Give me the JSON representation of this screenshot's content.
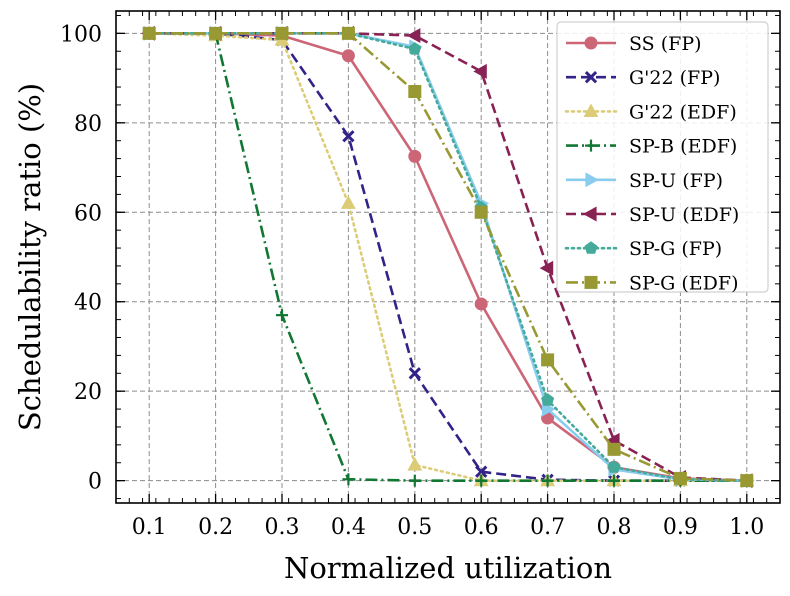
{
  "chart_data": {
    "type": "line",
    "xlabel": "Normalized utilization",
    "ylabel": "Schedulability ratio (%)",
    "xlim": [
      0.05,
      1.05
    ],
    "ylim": [
      -5,
      105
    ],
    "x_ticks": [
      "0.1",
      "0.2",
      "0.3",
      "0.4",
      "0.5",
      "0.6",
      "0.7",
      "0.8",
      "0.9",
      "1.0"
    ],
    "y_ticks": [
      "0",
      "20",
      "40",
      "60",
      "80",
      "100"
    ],
    "grid": true,
    "legend_position": "top-right",
    "x": [
      0.1,
      0.2,
      0.3,
      0.4,
      0.5,
      0.6,
      0.7,
      0.8,
      0.9,
      1.0
    ],
    "series": [
      {
        "name": "SS (FP)",
        "color": "#CC6677",
        "marker": "circle",
        "dash": "solid",
        "values": [
          100,
          100,
          99.5,
          95,
          72.5,
          39.5,
          14,
          3,
          0.5,
          0
        ]
      },
      {
        "name": "G'22 (FP)",
        "color": "#332288",
        "marker": "x",
        "dash": "dashed",
        "values": [
          100,
          100,
          98.5,
          77,
          24,
          2,
          0.2,
          0,
          0,
          0
        ]
      },
      {
        "name": "G'22 (EDF)",
        "color": "#DDCC77",
        "marker": "triangle-up",
        "dash": "dotted",
        "values": [
          100,
          99.5,
          98.5,
          62,
          3.5,
          0,
          0,
          0,
          0,
          0
        ]
      },
      {
        "name": "SP-B (EDF)",
        "color": "#117733",
        "marker": "plus",
        "dash": "dashdot",
        "values": [
          100,
          100,
          37,
          0.3,
          0,
          0,
          0,
          0,
          0,
          0
        ]
      },
      {
        "name": "SP-U (FP)",
        "color": "#88CCEE",
        "marker": "triangle-right",
        "dash": "solid",
        "values": [
          100,
          100,
          100,
          100,
          97,
          62,
          16,
          2.5,
          0.3,
          0
        ]
      },
      {
        "name": "SP-U (EDF)",
        "color": "#882255",
        "marker": "triangle-left",
        "dash": "dashed",
        "values": [
          100,
          100,
          100,
          100,
          99.5,
          91.5,
          47.5,
          9,
          0.7,
          0
        ]
      },
      {
        "name": "SP-G (FP)",
        "color": "#44AA99",
        "marker": "pentagon",
        "dash": "dotted",
        "values": [
          100,
          100,
          100,
          100,
          96.5,
          61,
          18,
          3,
          0.3,
          0
        ]
      },
      {
        "name": "SP-G (EDF)",
        "color": "#999933",
        "marker": "square",
        "dash": "dashdot",
        "values": [
          100,
          100,
          100,
          100,
          87,
          60,
          27,
          7,
          0.5,
          0
        ]
      }
    ]
  }
}
